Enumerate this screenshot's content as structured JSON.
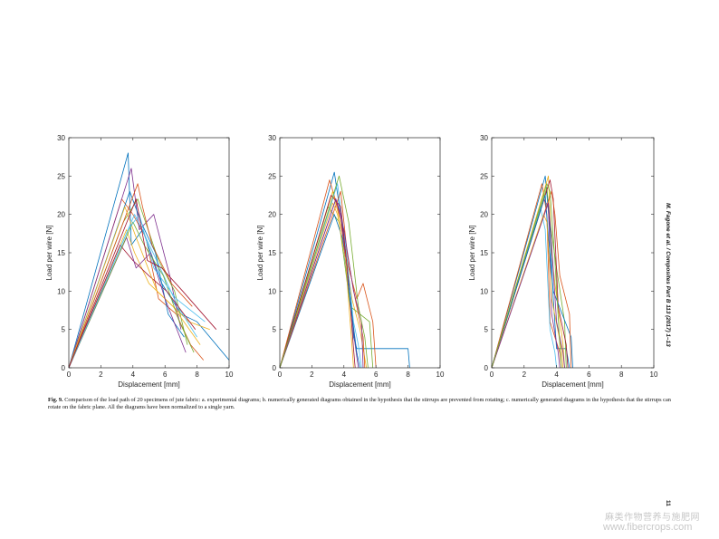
{
  "caption": {
    "label": "Fig. 9.",
    "text": "Comparison of the load path of 20 specimens of jute fabric: a. experimental diagrams; b. numerically generated diagrams obtained in the hypothesis that the stirrups are prevented from rotating; c. numerically generated diagrams in the hypothesis that the stirrups can rotate on the fabric plane. All the diagrams have been normalized to a single yarn."
  },
  "running_head": "M. Fagone et al. / Composites Part B 113 (2017) 1–13",
  "page_number": "11",
  "watermark": {
    "line1": "麻类作物营养与施肥网",
    "line2": "www.fibercrops.com"
  },
  "colors": [
    "#0072BD",
    "#D95319",
    "#EDB120",
    "#7E2F8E",
    "#77AC30",
    "#4DBEEE",
    "#A2142F"
  ],
  "chart_data": [
    {
      "type": "line",
      "panel": "a",
      "xlabel": "Displacement [mm]",
      "ylabel": "Load per wire [N]",
      "xlim": [
        0,
        10
      ],
      "ylim": [
        0,
        30
      ],
      "xticks": [
        0,
        2,
        4,
        6,
        8,
        10
      ],
      "yticks": [
        0,
        5,
        10,
        15,
        20,
        25,
        30
      ],
      "series": [
        {
          "x": [
            0,
            3.7,
            3.9,
            4.6,
            5.8,
            7.0,
            8.0,
            10.0
          ],
          "y": [
            0,
            28,
            16,
            18,
            11,
            7,
            6,
            1
          ]
        },
        {
          "x": [
            0,
            3.3,
            4.0,
            4.8,
            5.6,
            6.7,
            7.6,
            8.4
          ],
          "y": [
            0,
            22,
            20,
            17,
            9,
            7,
            3,
            1
          ]
        },
        {
          "x": [
            0,
            3.6,
            4.1,
            5.0,
            6.0,
            7.5,
            8.8
          ],
          "y": [
            0,
            18,
            15,
            11,
            9,
            6,
            5
          ]
        },
        {
          "x": [
            0,
            3.9,
            4.4,
            5.3,
            6.3,
            7.0
          ],
          "y": [
            0,
            26,
            18,
            20,
            12,
            5
          ]
        },
        {
          "x": [
            0,
            3.4,
            4.3,
            5.6,
            6.6,
            7.4
          ],
          "y": [
            0,
            19,
            22,
            14,
            10,
            3
          ]
        },
        {
          "x": [
            0,
            4.1,
            4.8,
            5.7,
            6.8,
            8.0
          ],
          "y": [
            0,
            20,
            17,
            13,
            8,
            4
          ]
        },
        {
          "x": [
            0,
            3.2,
            4.0,
            5.0,
            6.1,
            7.9
          ],
          "y": [
            0,
            16,
            14,
            12,
            10,
            5
          ]
        },
        {
          "x": [
            0,
            3.8,
            4.5,
            5.4,
            6.2,
            7.2
          ],
          "y": [
            0,
            23,
            19,
            15,
            7,
            4
          ]
        },
        {
          "x": [
            0,
            4.3,
            4.6,
            5.2,
            6.4,
            7.7
          ],
          "y": [
            0,
            24,
            21,
            16,
            11,
            8
          ]
        },
        {
          "x": [
            0,
            3.5,
            4.2,
            5.5,
            6.5,
            8.2
          ],
          "y": [
            0,
            21,
            17,
            10,
            8,
            3
          ]
        },
        {
          "x": [
            0,
            3.6,
            4.2,
            5.1,
            6.0,
            7.3
          ],
          "y": [
            0,
            17,
            13,
            15,
            9,
            2
          ]
        },
        {
          "x": [
            0,
            4.0,
            4.7,
            5.9,
            6.9,
            7.8
          ],
          "y": [
            0,
            19,
            16,
            12,
            6,
            2
          ]
        },
        {
          "x": [
            0,
            3.7,
            4.4,
            5.3,
            6.7,
            8.5
          ],
          "y": [
            0,
            18,
            20,
            13,
            9,
            6
          ]
        },
        {
          "x": [
            0,
            4.2,
            4.9,
            5.8,
            7.1,
            9.2
          ],
          "y": [
            0,
            22,
            14,
            13,
            10,
            5
          ]
        }
      ]
    },
    {
      "type": "line",
      "panel": "b",
      "xlabel": "Displacement [mm]",
      "ylabel": "Load per wire [N]",
      "xlim": [
        0,
        10
      ],
      "ylim": [
        0,
        30
      ],
      "xticks": [
        0,
        2,
        4,
        6,
        8,
        10
      ],
      "yticks": [
        0,
        5,
        10,
        15,
        20,
        25,
        30
      ],
      "series": [
        {
          "x": [
            0,
            3.4,
            4.0,
            4.4,
            4.6,
            4.8,
            8.0,
            8.1
          ],
          "y": [
            0,
            25.5,
            17,
            10,
            4,
            2.5,
            2.5,
            0
          ]
        },
        {
          "x": [
            0,
            3.1,
            3.6,
            4.3,
            4.8,
            5.2,
            5.8,
            6.0
          ],
          "y": [
            0,
            24.5,
            21,
            13,
            9,
            11,
            6,
            0
          ]
        },
        {
          "x": [
            0,
            3.3,
            3.9,
            4.5,
            5.0,
            5.4
          ],
          "y": [
            0,
            23,
            18,
            9,
            5,
            0
          ]
        },
        {
          "x": [
            0,
            3.5,
            3.8,
            4.2,
            4.7,
            4.9
          ],
          "y": [
            0,
            22,
            20,
            12,
            3,
            0
          ]
        },
        {
          "x": [
            0,
            3.0,
            3.7,
            4.4,
            5.6,
            5.8
          ],
          "y": [
            0,
            21,
            19,
            8,
            6,
            0
          ]
        },
        {
          "x": [
            0,
            3.6,
            4.1,
            4.6,
            4.9,
            5.1
          ],
          "y": [
            0,
            24,
            16,
            6,
            3,
            0
          ]
        },
        {
          "x": [
            0,
            3.2,
            3.8,
            4.3,
            4.6,
            4.7
          ],
          "y": [
            0,
            22.5,
            21,
            11,
            2.5,
            0
          ]
        },
        {
          "x": [
            0,
            3.4,
            3.9,
            4.5,
            4.8,
            5.0
          ],
          "y": [
            0,
            20,
            17,
            7,
            2,
            0
          ]
        },
        {
          "x": [
            0,
            3.8,
            4.2,
            4.7,
            5.2,
            5.3
          ],
          "y": [
            0,
            23,
            15,
            9,
            4,
            0
          ]
        },
        {
          "x": [
            0,
            3.3,
            3.6,
            4.1,
            4.5,
            4.6
          ],
          "y": [
            0,
            21.5,
            20,
            14,
            3,
            0
          ]
        },
        {
          "x": [
            0,
            3.5,
            4.0,
            4.6,
            5.1,
            5.2
          ],
          "y": [
            0,
            22,
            18,
            10,
            6,
            0
          ]
        },
        {
          "x": [
            0,
            3.7,
            4.3,
            4.9,
            5.3,
            5.5
          ],
          "y": [
            0,
            25,
            19,
            8,
            4,
            0
          ]
        }
      ]
    },
    {
      "type": "line",
      "panel": "c",
      "xlabel": "Displacement [mm]",
      "ylabel": "Load per wire [N]",
      "xlim": [
        0,
        10
      ],
      "ylim": [
        0,
        30
      ],
      "xticks": [
        0,
        2,
        4,
        6,
        8,
        10
      ],
      "yticks": [
        0,
        5,
        10,
        15,
        20,
        25,
        30
      ],
      "series": [
        {
          "x": [
            0,
            3.3,
            3.6,
            3.8,
            4.0,
            4.6,
            4.8
          ],
          "y": [
            0,
            25,
            18,
            9,
            2.5,
            2.5,
            0
          ]
        },
        {
          "x": [
            0,
            3.1,
            3.4,
            3.6,
            4.2,
            4.3
          ],
          "y": [
            0,
            24,
            20,
            6,
            2,
            0
          ]
        },
        {
          "x": [
            0,
            3.5,
            3.7,
            3.9,
            4.4,
            4.5
          ],
          "y": [
            0,
            25,
            15,
            11,
            3,
            0
          ]
        },
        {
          "x": [
            0,
            3.2,
            3.5,
            3.7,
            4.1,
            4.2
          ],
          "y": [
            0,
            22,
            21,
            7,
            2,
            0
          ]
        },
        {
          "x": [
            0,
            3.4,
            3.6,
            4.0,
            4.5,
            4.6
          ],
          "y": [
            0,
            23.5,
            19,
            13,
            6,
            0
          ]
        },
        {
          "x": [
            0,
            3.0,
            3.3,
            3.6,
            3.9,
            4.0
          ],
          "y": [
            0,
            21,
            18,
            5,
            2,
            0
          ]
        },
        {
          "x": [
            0,
            3.6,
            3.8,
            4.1,
            4.6,
            4.7
          ],
          "y": [
            0,
            24.5,
            22,
            8,
            3,
            0
          ]
        },
        {
          "x": [
            0,
            3.3,
            3.5,
            3.8,
            4.9,
            5.0
          ],
          "y": [
            0,
            22.5,
            17,
            10,
            4,
            0
          ]
        },
        {
          "x": [
            0,
            3.7,
            3.9,
            4.2,
            4.8,
            4.9
          ],
          "y": [
            0,
            23,
            20,
            12,
            7,
            0
          ]
        },
        {
          "x": [
            0,
            3.2,
            3.4,
            3.7,
            4.3,
            4.4
          ],
          "y": [
            0,
            20,
            19,
            9,
            2.5,
            0
          ]
        },
        {
          "x": [
            0,
            3.5,
            3.7,
            4.0,
            4.4,
            4.5
          ],
          "y": [
            0,
            21.5,
            16,
            6,
            2,
            0
          ]
        },
        {
          "x": [
            0,
            3.4,
            3.6,
            3.9,
            4.2,
            4.3
          ],
          "y": [
            0,
            24,
            23,
            14,
            3,
            0
          ]
        }
      ]
    }
  ]
}
